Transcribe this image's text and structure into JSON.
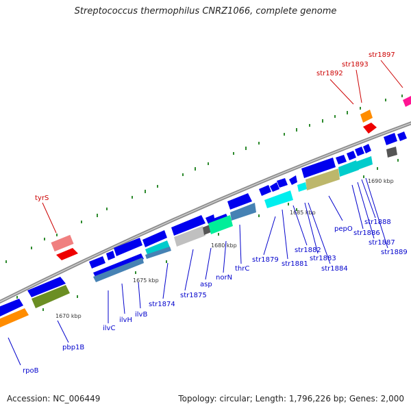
{
  "title": "Streptococcus thermophilus CNRZ1066, complete genome",
  "footer": {
    "accession": "Accession: NC_006449",
    "summary": "Topology: circular; Length: 1,796,226 bp; Genes: 2,000"
  },
  "colors": {
    "backbone": "#8c8c8c",
    "tick": "#2e8b2e",
    "label_blue": "#0000cc",
    "label_red": "#cc0000",
    "gene_blue": "#0000ee",
    "gene_cyan": "#00cccc",
    "gene_teal": "#4682b4",
    "gene_green": "#6b8e23",
    "gene_orange": "#ff8c00",
    "gene_red": "#ee0000",
    "gene_pink": "#f08080",
    "gene_olive": "#bdb76b",
    "gene_gray": "#bdbdbd",
    "gene_dark": "#555555"
  },
  "scale_labels": [
    "1670 kbp",
    "1675 kbp",
    "1680 kbp",
    "1685 kbp",
    "1690 kbp"
  ],
  "gene_labels": [
    "rpoB",
    "pbp1B",
    "ilvC",
    "ilvH",
    "ilvB",
    "str1874",
    "str1875",
    "asp",
    "norN",
    "thrC",
    "str1879",
    "str1881",
    "str1882",
    "str1883",
    "str1884",
    "pepO",
    "str1886",
    "str1887",
    "str1888",
    "str1889"
  ],
  "rna_labels": [
    "tyrS",
    "str1892",
    "str1893",
    "str1897"
  ]
}
